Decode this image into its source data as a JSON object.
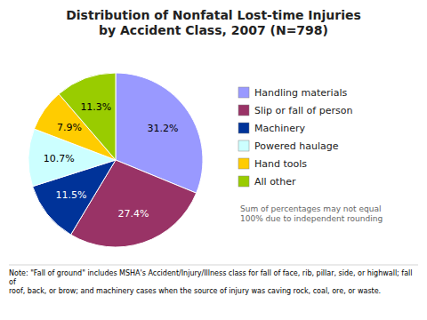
{
  "chart_data": {
    "type": "pie",
    "title": "Distribution of Nonfatal Lost-time Injuries\nby Accident Class, 2007 (N=798)",
    "categories": [
      "Handling materials",
      "Slip or fall of person",
      "Machinery",
      "Powered haulage",
      "Hand tools",
      "All other"
    ],
    "values": [
      31.2,
      27.4,
      11.5,
      10.7,
      7.9,
      11.3
    ],
    "value_labels": [
      "31.2%",
      "27.4%",
      "11.5%",
      "10.7%",
      "7.9%",
      "11.3%"
    ],
    "colors": [
      "#9999FF",
      "#993366",
      "#003399",
      "#CCFFFF",
      "#FFCC00",
      "#99CC00"
    ],
    "data_labels": true,
    "legend": "right",
    "annotations": [
      "Sum of percentages may not equal\n100% due to independent rounding",
      "Note: \"Fall of ground\" includes MSHA's Accident/Injury/Illness class for fall of face, rib, pillar, side, or highwall; fall of\nroof, back, or brow; and machinery cases when the source of injury was caving rock, coal, ore, or waste."
    ]
  }
}
